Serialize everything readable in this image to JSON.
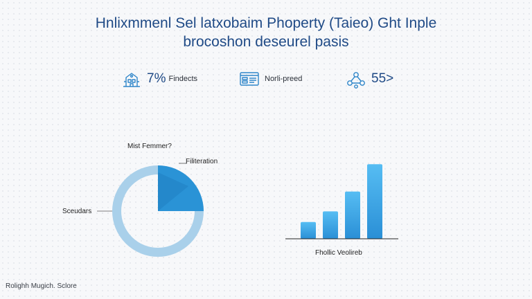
{
  "header": {
    "line1": "Hnlixmmenl Sel latxobaim Phoperty (Taieo) Ght Inple",
    "line2": "brocoshon deseurel pasis"
  },
  "stats": [
    {
      "icon": "building-icon",
      "value": "7%",
      "label": "Findects"
    },
    {
      "icon": "dashboard-icon",
      "value": "",
      "label": "Norli-preed"
    },
    {
      "icon": "network-icon",
      "value": "55>",
      "label": ""
    }
  ],
  "chart_data": [
    {
      "type": "pie",
      "title": "Mist Femmer?",
      "labels": [
        "Filiteration",
        "Sceudars"
      ],
      "values": [
        25,
        75
      ],
      "colors": [
        "#2a93d6",
        "#9ccbe8"
      ]
    },
    {
      "type": "bar",
      "title": "",
      "xlabel": "Fhollic Veolireb",
      "categories": [
        "",
        "",
        "",
        ""
      ],
      "values": [
        2.2,
        3.6,
        6.2,
        9.8
      ],
      "ylim": [
        0,
        10
      ],
      "color": "#3aa6e6"
    }
  ],
  "footer": "Rolighh Mugich. Sclore"
}
